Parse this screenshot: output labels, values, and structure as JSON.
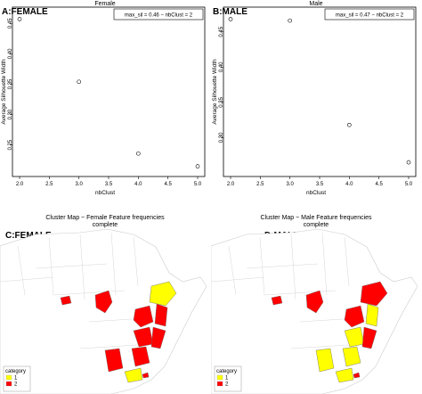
{
  "chart_data": [
    {
      "type": "scatter",
      "panel_label": "A:FEMALE",
      "title": "Female",
      "xlabel": "nbClust",
      "ylabel": "Average Silhouette Width",
      "x": [
        2,
        3,
        4,
        5
      ],
      "y": [
        0.457,
        0.354,
        0.236,
        0.215
      ],
      "xlim": [
        2,
        5
      ],
      "ylim": [
        0.21,
        0.465
      ],
      "xticks": [
        "2.0",
        "2.5",
        "3.0",
        "3.5",
        "4.0",
        "4.5",
        "5.0"
      ],
      "yticks": [
        "0.25",
        "0.30",
        "0.35",
        "0.40",
        "0.45"
      ],
      "legend_text": "max_sil = 0.46 − nbClust = 2",
      "legend_position": "top-right",
      "grid": false
    },
    {
      "type": "scatter",
      "panel_label": "B:MALE",
      "title": "Male",
      "xlabel": "nbClust",
      "ylabel": "Average Silhouette Width",
      "x": [
        2,
        3,
        4,
        5
      ],
      "y": [
        0.468,
        0.466,
        0.318,
        0.265
      ],
      "xlim": [
        2,
        5
      ],
      "ylim": [
        0.255,
        0.475
      ],
      "xticks": [
        "2.0",
        "2.5",
        "3.0",
        "3.5",
        "4.0",
        "4.5",
        "5.0"
      ],
      "yticks": [
        "0.30",
        "0.35",
        "0.40",
        "0.45"
      ],
      "legend_text": "max_sil = 0.47 − nbClust = 2",
      "legend_position": "top-right",
      "grid": false
    },
    {
      "type": "map",
      "panel_label": "C:FEMALE",
      "title_line1": "Cluster Map ~ Female Feature frequencies",
      "title_line2": "complete",
      "legend_title": "category",
      "legend_items": [
        {
          "label": "1",
          "color": "#ffff00"
        },
        {
          "label": "2",
          "color": "#ff0000"
        }
      ],
      "region_categories": {
        "west-coast": "2",
        "cameroon": "2",
        "east-1": "1",
        "east-2": "2",
        "east-3": "2",
        "center-1": "2",
        "center-2": "2",
        "south-1": "2",
        "south-2": "2",
        "south-3": "1",
        "island": "2"
      }
    },
    {
      "type": "map",
      "panel_label": "D:MALE",
      "title_line1": "Cluster Map ~ Male Feature frequencies",
      "title_line2": "complete",
      "legend_title": "category",
      "legend_items": [
        {
          "label": "1",
          "color": "#ffff00"
        },
        {
          "label": "2",
          "color": "#ff0000"
        }
      ],
      "region_categories": {
        "west-coast": "2",
        "cameroon": "2",
        "east-1": "2",
        "east-2": "2",
        "east-3": "1",
        "center-1": "1",
        "center-2": "2",
        "south-1": "1",
        "south-2": "1",
        "south-3": "1",
        "island": "2"
      }
    }
  ],
  "colors": {
    "category_1": "#ffff00",
    "category_2": "#ff0000",
    "border": "#cccccc",
    "land": "#ffffff"
  }
}
